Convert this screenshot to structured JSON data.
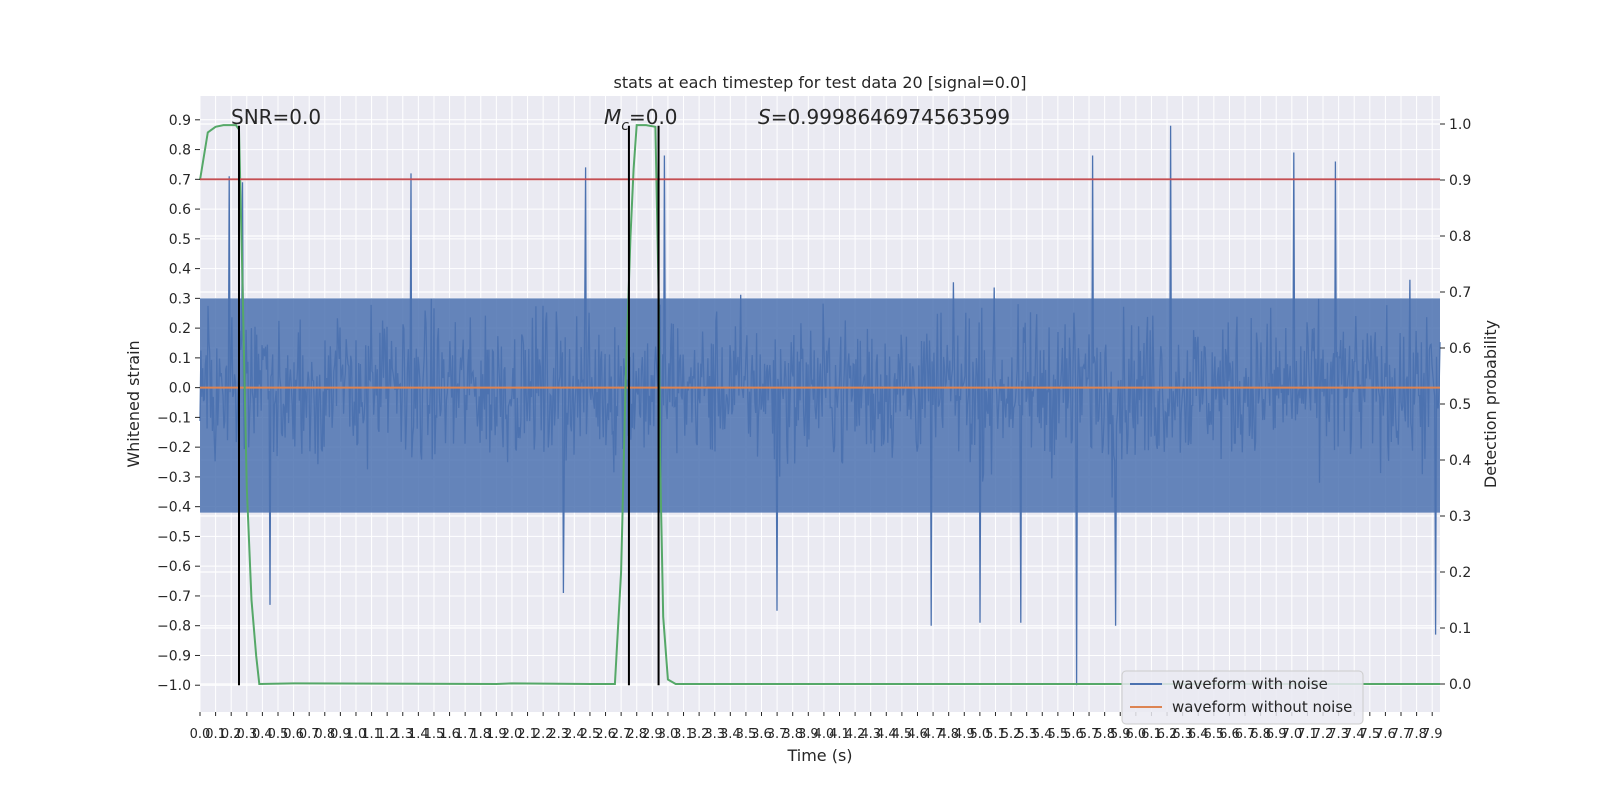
{
  "chart_data": {
    "type": "line",
    "title": "stats at each timestep for test data 20 [signal=0.0]",
    "xlabel": "Time (s)",
    "ylabel": "Whitened strain",
    "y2label": "Detection probability",
    "xlim": [
      0.0,
      7.95
    ],
    "ylim": [
      -1.09,
      0.98
    ],
    "y2lim": [
      -0.05,
      1.05
    ],
    "x_ticks": [
      0.0,
      0.1,
      0.2,
      0.3,
      0.4,
      0.5,
      0.6,
      0.7,
      0.8,
      0.9,
      1.0,
      1.1,
      1.2,
      1.3,
      1.4,
      1.5,
      1.6,
      1.7,
      1.8,
      1.9,
      2.0,
      2.1,
      2.2,
      2.3,
      2.4,
      2.5,
      2.6,
      2.7,
      2.8,
      2.9,
      3.0,
      3.1,
      3.2,
      3.3,
      3.4,
      3.5,
      3.6,
      3.7,
      3.8,
      3.9,
      4.0,
      4.1,
      4.2,
      4.3,
      4.4,
      4.5,
      4.6,
      4.7,
      4.8,
      4.9,
      5.0,
      5.1,
      5.2,
      5.3,
      5.4,
      5.5,
      5.6,
      5.7,
      5.8,
      5.9,
      6.0,
      6.1,
      6.2,
      6.3,
      6.4,
      6.5,
      6.6,
      6.7,
      6.8,
      6.9,
      7.0,
      7.1,
      7.2,
      7.3,
      7.4,
      7.5,
      7.6,
      7.7,
      7.8,
      7.9
    ],
    "y_ticks": [
      "0.9",
      "0.8",
      "0.7",
      "0.6",
      "0.5",
      "0.4",
      "0.3",
      "0.2",
      "0.1",
      "0.0",
      "−0.1",
      "−0.2",
      "−0.3",
      "−0.4",
      "−0.5",
      "−0.6",
      "−0.7",
      "−0.8",
      "−0.9",
      "−1.0"
    ],
    "y2_ticks": [
      "1.0",
      "0.9",
      "0.8",
      "0.7",
      "0.6",
      "0.5",
      "0.4",
      "0.3",
      "0.2",
      "0.1",
      "0.0"
    ],
    "grid": true,
    "legend_placement": "lower-right",
    "annotations": {
      "snr": "SNR=0.0",
      "mc_symbol": "M",
      "mc_subscript": "c",
      "mc_value": "=0.0",
      "s_symbol": "S",
      "s_value": "=0.9998646974563599"
    },
    "threshold": {
      "y": 0.7,
      "color": "#c44e52"
    },
    "vertical_markers": [
      0.25,
      2.75,
      2.94
    ],
    "noise_envelope": {
      "x_range": [
        0.0,
        7.95
      ],
      "y_min": -1.0,
      "y_max": 0.88
    },
    "noise_peaks": [
      {
        "x": 0.19,
        "y": 0.71
      },
      {
        "x": 0.27,
        "y": 0.69
      },
      {
        "x": 1.35,
        "y": 0.72
      },
      {
        "x": 2.47,
        "y": 0.74
      },
      {
        "x": 2.98,
        "y": 0.78
      },
      {
        "x": 5.72,
        "y": 0.78
      },
      {
        "x": 6.22,
        "y": 0.88
      },
      {
        "x": 7.01,
        "y": 0.79
      },
      {
        "x": 7.28,
        "y": 0.76
      },
      {
        "x": 5.62,
        "y": -1.0
      },
      {
        "x": 7.92,
        "y": -0.83
      },
      {
        "x": 3.7,
        "y": -0.75
      },
      {
        "x": 5.0,
        "y": -0.79
      },
      {
        "x": 5.26,
        "y": -0.79
      },
      {
        "x": 5.87,
        "y": -0.8
      },
      {
        "x": 2.33,
        "y": -0.69
      },
      {
        "x": 0.45,
        "y": -0.73
      },
      {
        "x": 4.69,
        "y": -0.8
      }
    ],
    "series": [
      {
        "name": "waveform with noise",
        "color": "#4c72b0",
        "axis": "left"
      },
      {
        "name": "waveform without noise",
        "color": "#dd8452",
        "axis": "left",
        "x": [
          0.0,
          7.95
        ],
        "values": [
          0.0,
          0.0
        ]
      },
      {
        "color": "#55a868",
        "axis": "right",
        "x": [
          0.0,
          0.05,
          0.1,
          0.15,
          0.2,
          0.23,
          0.25,
          0.27,
          0.3,
          0.33,
          0.36,
          0.38,
          0.6,
          1.9,
          2.0,
          2.5,
          2.66,
          2.7,
          2.73,
          2.76,
          2.78,
          2.8,
          2.86,
          2.92,
          2.94,
          2.95,
          2.97,
          3.0,
          3.05,
          3.1,
          7.95
        ],
        "values": [
          0.9,
          0.985,
          0.995,
          0.998,
          0.998,
          0.998,
          0.99,
          0.75,
          0.35,
          0.15,
          0.05,
          0.0,
          0.001,
          0.0,
          0.001,
          0.0,
          0.0,
          0.2,
          0.55,
          0.8,
          0.92,
          0.998,
          0.998,
          0.995,
          0.7,
          0.4,
          0.12,
          0.008,
          0.0,
          0.0,
          0.0
        ]
      }
    ]
  }
}
